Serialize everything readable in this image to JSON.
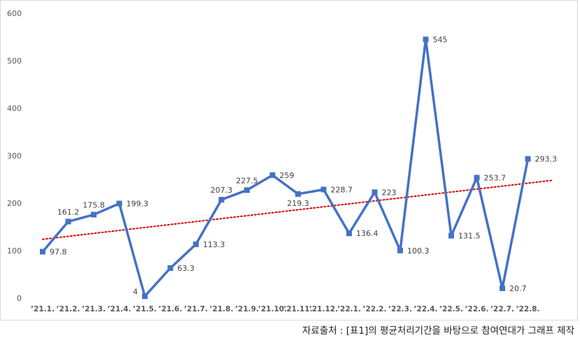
{
  "chart_data": {
    "type": "line",
    "categories": [
      "'21.1.",
      "'21.2.",
      "'21.3.",
      "'21.4.",
      "'21.5.",
      "'21.6.",
      "'21.7.",
      "'21.8.",
      "'21.9.",
      "'21.10.",
      "'21.11.",
      "'21.12.",
      "'22.1.",
      "'22.2.",
      "'22.3.",
      "'22.4.",
      "'22.5.",
      "'22.6.",
      "'22.7.",
      "'22.8."
    ],
    "series": [
      {
        "values": [
          97.8,
          161.2,
          175.8,
          199.3,
          4,
          63.3,
          113.3,
          207.3,
          227.5,
          259,
          219.3,
          228.7,
          136.4,
          223,
          100.3,
          545,
          131.5,
          253.7,
          20.7,
          293.3
        ],
        "labels": [
          "97.8",
          "161.2",
          "175.8",
          "199.3",
          "4",
          "63.3",
          "113.3",
          "207.3",
          "227.5",
          "259",
          "219.3",
          "228.7",
          "136.4",
          "223",
          "100.3",
          "545",
          "131.5",
          "253.7",
          "20.7",
          "293.3"
        ],
        "color": "#4472c4"
      }
    ],
    "trendline": {
      "type": "linear",
      "color": "#e00000",
      "style": "dotted"
    },
    "yticks": [
      "0",
      "100",
      "200",
      "300",
      "400",
      "500",
      "600"
    ],
    "ylim": [
      0,
      600
    ],
    "grid": false,
    "legend": "none",
    "title": "",
    "xlabel": "",
    "ylabel": ""
  },
  "source_note": "자료출처 : [표1]의 평균처리기간을 바탕으로 참여연대가 그래프 제작"
}
